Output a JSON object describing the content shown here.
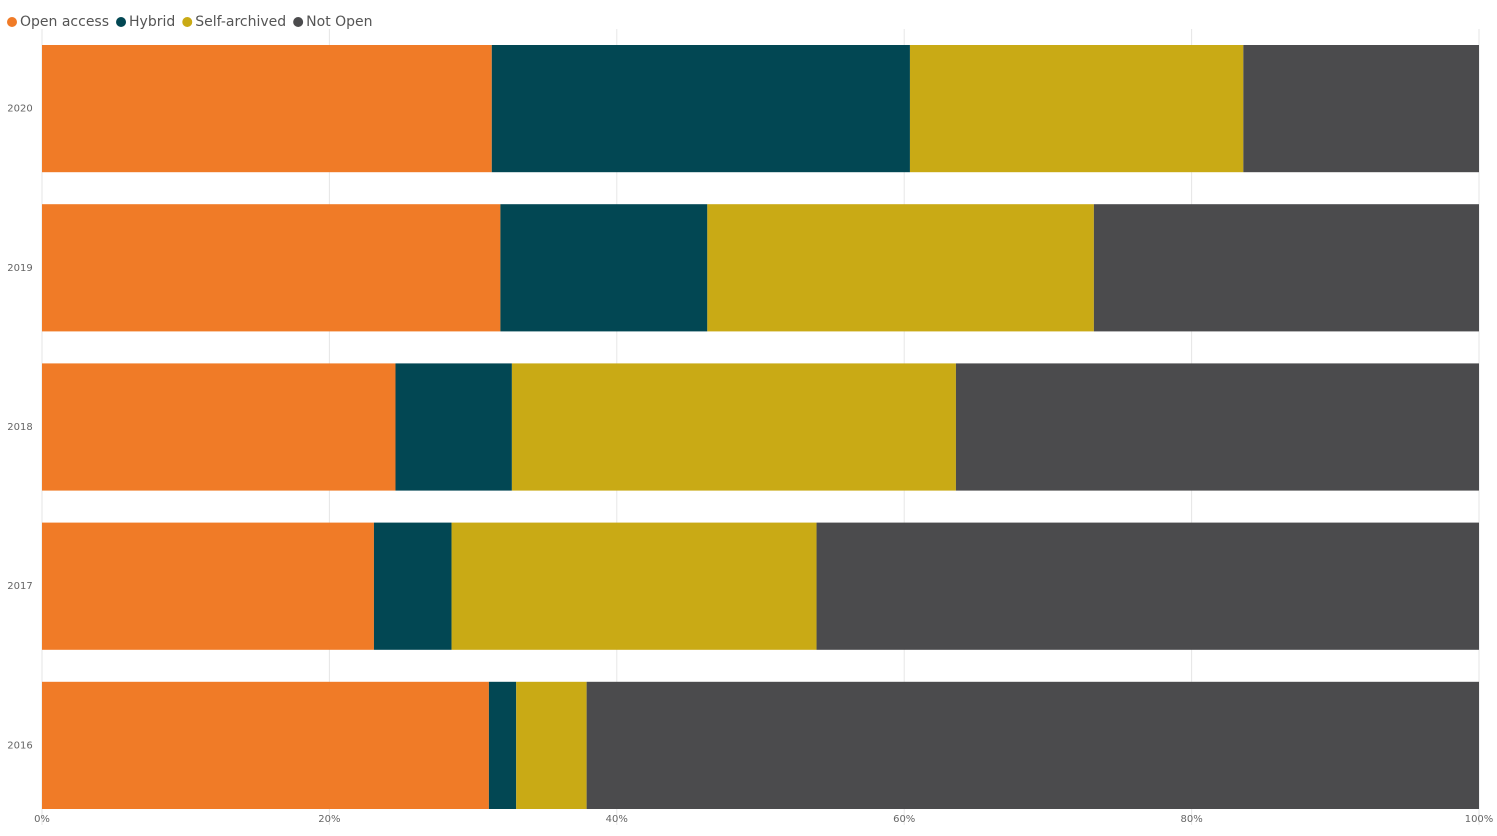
{
  "chart_data": {
    "type": "stacked-bar-horizontal",
    "categories": [
      "2020",
      "2019",
      "2018",
      "2017",
      "2016"
    ],
    "series": [
      {
        "name": "Open access",
        "color": "#f07b27",
        "values": [
          31.3,
          31.9,
          24.6,
          23.1,
          31.1
        ]
      },
      {
        "name": "Hybrid",
        "color": "#024753",
        "values": [
          29.1,
          14.4,
          8.1,
          5.4,
          1.9
        ]
      },
      {
        "name": "Self-archived",
        "color": "#c9aa15",
        "values": [
          23.2,
          26.9,
          30.9,
          25.4,
          4.9
        ]
      },
      {
        "name": "Not Open",
        "color": "#4b4b4d",
        "values": [
          16.4,
          26.8,
          36.4,
          46.1,
          62.1
        ]
      }
    ],
    "xlim": [
      0,
      100
    ],
    "xticks": [
      {
        "value": 0,
        "label": "0%"
      },
      {
        "value": 20,
        "label": "20%"
      },
      {
        "value": 40,
        "label": "40%"
      },
      {
        "value": 60,
        "label": "60%"
      },
      {
        "value": 80,
        "label": "80%"
      },
      {
        "value": 100,
        "label": "100%"
      }
    ],
    "grid": true,
    "legend": "top-left"
  }
}
